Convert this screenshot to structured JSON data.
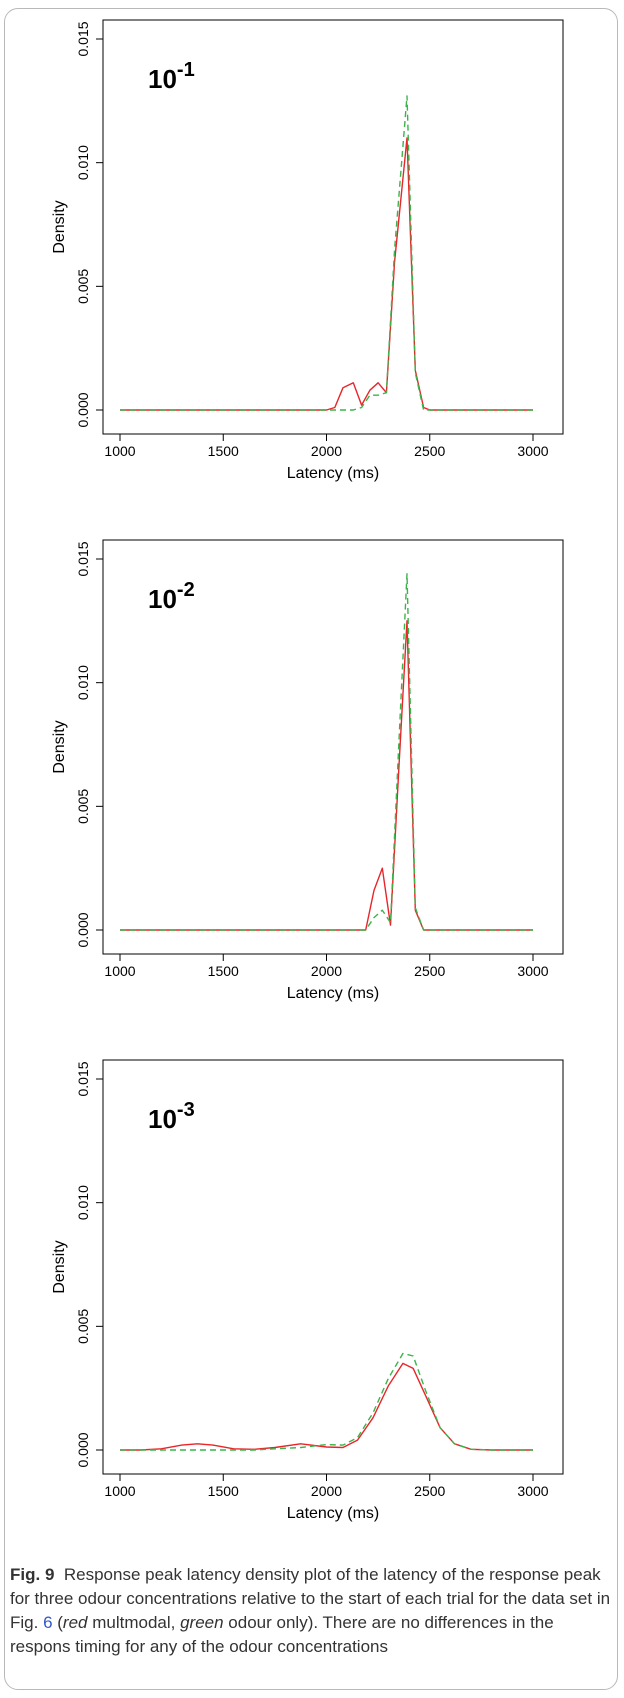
{
  "chart_data": [
    {
      "type": "line",
      "panel_label": "10",
      "panel_label_exp": "-1",
      "xlabel": "Latency (ms)",
      "ylabel": "Density",
      "xlim": [
        1000,
        3000
      ],
      "ylim": [
        0,
        0.015
      ],
      "xticks": [
        "1000",
        "1500",
        "2000",
        "2500",
        "3000"
      ],
      "yticks": [
        "0.000",
        "0.005",
        "0.010",
        "0.015"
      ],
      "x": [
        1000,
        1500,
        2000,
        2040,
        2080,
        2130,
        2170,
        2210,
        2250,
        2290,
        2330,
        2390,
        2430,
        2470,
        2500,
        3000
      ],
      "series": [
        {
          "color": "#e8262a",
          "dash": "solid",
          "values": [
            0,
            0,
            0,
            0.0001,
            0.0009,
            0.0011,
            0.0002,
            0.0008,
            0.0011,
            0.0007,
            0.006,
            0.011,
            0.0016,
            0.0001,
            0,
            0
          ]
        },
        {
          "color": "#3cb44b",
          "dash": "dashed",
          "values": [
            0,
            0,
            0,
            0,
            0,
            0,
            0.0001,
            0.0006,
            0.0006,
            0.0007,
            0.0065,
            0.0127,
            0.0015,
            0,
            0,
            0
          ]
        }
      ]
    },
    {
      "type": "line",
      "panel_label": "10",
      "panel_label_exp": "-2",
      "xlabel": "Latency (ms)",
      "ylabel": "Density",
      "xlim": [
        1000,
        3000
      ],
      "ylim": [
        0,
        0.015
      ],
      "xticks": [
        "1000",
        "1500",
        "2000",
        "2500",
        "3000"
      ],
      "yticks": [
        "0.000",
        "0.005",
        "0.010",
        "0.015"
      ],
      "x": [
        1000,
        1500,
        2000,
        2150,
        2190,
        2230,
        2270,
        2310,
        2350,
        2390,
        2430,
        2470,
        2500,
        3000
      ],
      "series": [
        {
          "color": "#e8262a",
          "dash": "solid",
          "values": [
            0,
            0,
            0,
            0,
            0,
            0.0016,
            0.0025,
            0.0002,
            0.0065,
            0.0125,
            0.0008,
            0,
            0,
            0
          ]
        },
        {
          "color": "#3cb44b",
          "dash": "dashed",
          "values": [
            0,
            0,
            0,
            0,
            0,
            0.0005,
            0.0008,
            0.0003,
            0.0075,
            0.0144,
            0.0009,
            0,
            0,
            0
          ]
        }
      ]
    },
    {
      "type": "line",
      "panel_label": "10",
      "panel_label_exp": "-3",
      "xlabel": "Latency (ms)",
      "ylabel": "Density",
      "xlim": [
        1000,
        3000
      ],
      "ylim": [
        0,
        0.015
      ],
      "xticks": [
        "1000",
        "1500",
        "2000",
        "2500",
        "3000"
      ],
      "yticks": [
        "0.000",
        "0.005",
        "0.010",
        "0.015"
      ],
      "x": [
        1000,
        1100,
        1200,
        1300,
        1375,
        1450,
        1550,
        1650,
        1750,
        1875,
        2000,
        2080,
        2150,
        2225,
        2300,
        2370,
        2420,
        2480,
        2550,
        2620,
        2700,
        2800,
        3000
      ],
      "series": [
        {
          "color": "#e8262a",
          "dash": "solid",
          "values": [
            0,
            0,
            5e-05,
            0.0002,
            0.00025,
            0.0002,
            5e-05,
            3e-05,
            0.0001,
            0.00025,
            0.00012,
            0.0001,
            0.0004,
            0.0013,
            0.0026,
            0.0035,
            0.0033,
            0.0022,
            0.0009,
            0.00025,
            3e-05,
            0,
            0
          ]
        },
        {
          "color": "#3cb44b",
          "dash": "dashed",
          "values": [
            0,
            0,
            0,
            0,
            0,
            0,
            0,
            0,
            5e-05,
            0.0001,
            0.00022,
            0.0002,
            0.0005,
            0.0015,
            0.0029,
            0.0039,
            0.0038,
            0.0024,
            0.0009,
            0.00025,
            3e-05,
            0,
            0
          ]
        }
      ]
    }
  ],
  "caption": {
    "label": "Fig. 9",
    "text_1": "Response peak latency density plot of the latency of the response peak for three odour concentrations relative to the start of each trial for the data set in Fig. ",
    "fig_ref": "6",
    "text_2": " (",
    "red_word": "red",
    "text_3": " multmodal, ",
    "green_word": "green",
    "text_4": " odour only). There are no differences in the respons timing for any of the odour concentrations"
  }
}
